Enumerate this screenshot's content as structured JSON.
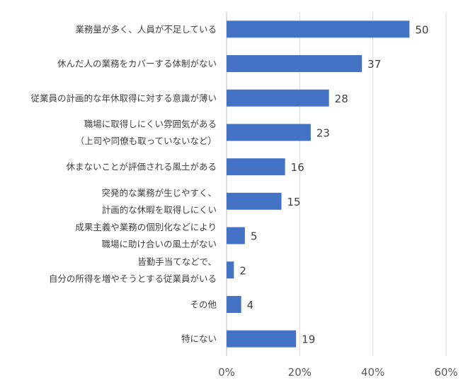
{
  "chart_data": {
    "type": "bar",
    "orientation": "horizontal",
    "categories": [
      [
        "業務量が多く、人員が不足している"
      ],
      [
        "休んだ人の業務をカバーする体制がない"
      ],
      [
        "従業員の計画的な年休取得に対する意識が薄い"
      ],
      [
        "職場に取得しにくい雰囲気がある",
        "（上司や同僚も取っていないなど）"
      ],
      [
        "休まないことが評価される風土がある"
      ],
      [
        "突発的な業務が生じやすく、",
        "計画的な休暇を取得しにくい"
      ],
      [
        "成果主義や業務の個別化などにより",
        "職場に助け合いの風土がない"
      ],
      [
        "皆勤手当てなどで、",
        "自分の所得を増やそうとする従業員がいる"
      ],
      [
        "その他"
      ],
      [
        "特にない"
      ]
    ],
    "values": [
      50,
      37,
      28,
      23,
      16,
      15,
      5,
      2,
      4,
      19
    ],
    "xlim": [
      0,
      60
    ],
    "xticks": [
      "0%",
      "20%",
      "40%",
      "60%"
    ],
    "bar_color": "#4472c4",
    "grid": true,
    "title": "",
    "xlabel": "",
    "ylabel": ""
  }
}
